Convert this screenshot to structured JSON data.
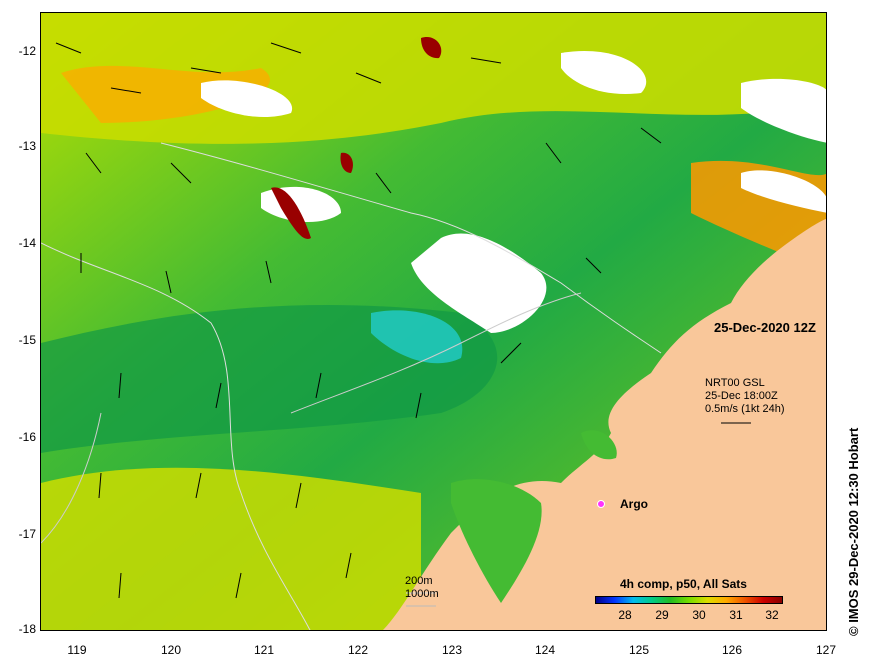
{
  "map": {
    "date_label": "25-Dec-2020 12Z",
    "current_legend": {
      "line1": "NRT00 GSL",
      "line2": "25-Dec 18:00Z",
      "line3": "0.5m/s (1kt 24h)"
    },
    "argo_label": "Argo",
    "depth_legend": {
      "line1": "200m",
      "line2": "1000m"
    },
    "colorbar": {
      "title": "4h comp, p50, All Sats",
      "ticks": [
        "28",
        "29",
        "30",
        "31",
        "32"
      ]
    },
    "credit": "© IMOS 29-Dec-2020 12:30 Hobart",
    "lat_labels": [
      "-12",
      "-13",
      "-14",
      "-15",
      "-16",
      "-17",
      "-18"
    ],
    "lon_labels": [
      "119",
      "120",
      "121",
      "122",
      "123",
      "124",
      "125",
      "126",
      "127"
    ],
    "colors": {
      "land": "#f9c79a",
      "cloud": "#ffffff",
      "sst_cool": "#22bb33",
      "sst_mid": "#88dd11",
      "sst_warm": "#ffaa00",
      "sst_hot": "#990000"
    },
    "icons": [
      "current-vector-icon",
      "argo-float-icon"
    ]
  }
}
